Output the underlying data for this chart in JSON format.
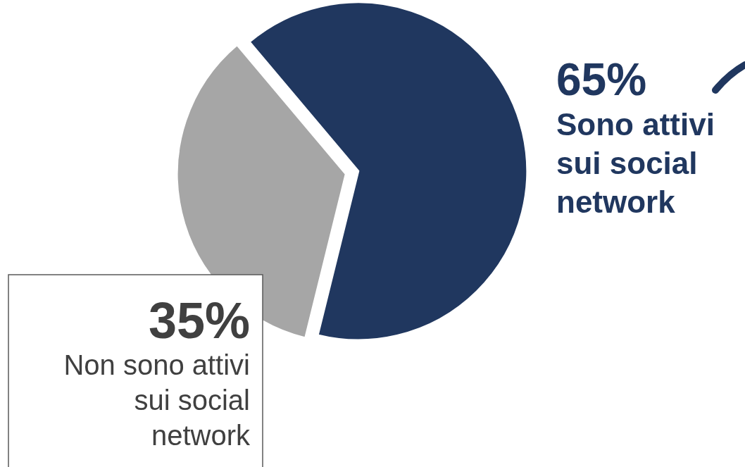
{
  "chart_data": {
    "type": "pie",
    "categories": [
      "Sono attivi sui social network",
      "Non sono attivi sui social network"
    ],
    "values": [
      65,
      35
    ],
    "colors": [
      "#20375f",
      "#a6a6a6"
    ],
    "value_labels": [
      "65%",
      "35%"
    ]
  }
}
